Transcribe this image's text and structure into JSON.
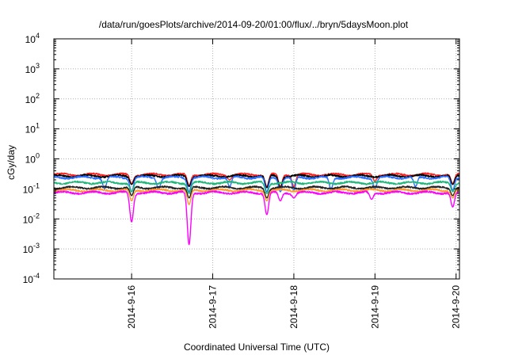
{
  "chart_data": {
    "type": "line",
    "title": "/data/run/goesPlots/archive/2014-09-20/01:00/flux/../bryn/5daysMoon.plot",
    "xlabel": "Coordinated Universal Time (UTC)",
    "ylabel": "cGy/day",
    "yscale": "log",
    "ylim": [
      0.0001,
      10000
    ],
    "y_ticks": [
      {
        "value": 0.0001,
        "mantissa": "10",
        "exp": "-4"
      },
      {
        "value": 0.001,
        "mantissa": "10",
        "exp": "-3"
      },
      {
        "value": 0.01,
        "mantissa": "10",
        "exp": "-2"
      },
      {
        "value": 0.1,
        "mantissa": "10",
        "exp": "-1"
      },
      {
        "value": 1,
        "mantissa": "10",
        "exp": "0"
      },
      {
        "value": 10,
        "mantissa": "10",
        "exp": "1"
      },
      {
        "value": 100,
        "mantissa": "10",
        "exp": "2"
      },
      {
        "value": 1000,
        "mantissa": "10",
        "exp": "3"
      },
      {
        "value": 10000,
        "mantissa": "10",
        "exp": "4"
      }
    ],
    "xlim": [
      "2014-09-15T01:00",
      "2014-09-20T01:00"
    ],
    "x_ticks": [
      "2014-9-16",
      "2014-9-17",
      "2014-9-18",
      "2014-9-19",
      "2014-9-20"
    ],
    "grid": true,
    "legend": "none",
    "series": [
      {
        "color": "#ff2222",
        "base": 0.3,
        "dips": [
          [
            "2014-09-16T00:00",
            0.15
          ],
          [
            "2014-09-16T17:00",
            0.13
          ],
          [
            "2014-09-17T05:00",
            0.2
          ],
          [
            "2014-09-17T16:00",
            0.12
          ],
          [
            "2014-09-17T20:00",
            0.12
          ],
          [
            "2014-09-18T00:00",
            0.12
          ],
          [
            "2014-09-19T00:00",
            0.18
          ],
          [
            "2014-09-19T23:00",
            0.15
          ]
        ]
      },
      {
        "color": "#000000",
        "base": 0.27,
        "dips": [
          [
            "2014-09-16T00:00",
            0.14
          ],
          [
            "2014-09-16T17:00",
            0.12
          ],
          [
            "2014-09-17T16:00",
            0.11
          ],
          [
            "2014-09-17T20:00",
            0.11
          ],
          [
            "2014-09-19T23:00",
            0.14
          ]
        ]
      },
      {
        "color": "#2a6eff",
        "base": 0.24,
        "dips": [
          [
            "2014-09-15T16:00",
            0.1
          ],
          [
            "2014-09-16T00:00",
            0.08
          ],
          [
            "2014-09-16T08:00",
            0.1
          ],
          [
            "2014-09-16T17:00",
            0.08
          ],
          [
            "2014-09-17T05:00",
            0.12
          ],
          [
            "2014-09-17T16:00",
            0.08
          ],
          [
            "2014-09-17T20:00",
            0.08
          ],
          [
            "2014-09-18T00:00",
            0.09
          ],
          [
            "2014-09-18T11:00",
            0.1
          ],
          [
            "2014-09-19T00:00",
            0.1
          ],
          [
            "2014-09-19T12:00",
            0.12
          ],
          [
            "2014-09-19T23:00",
            0.09
          ]
        ]
      },
      {
        "color": "#1fb87a",
        "base": 0.16,
        "dips": [
          [
            "2014-09-16T00:00",
            0.08
          ],
          [
            "2014-09-16T17:00",
            0.07
          ],
          [
            "2014-09-17T16:00",
            0.07
          ],
          [
            "2014-09-19T23:00",
            0.08
          ]
        ]
      },
      {
        "color": "#222222",
        "base": 0.11,
        "dips": [
          [
            "2014-09-16T00:00",
            0.06
          ],
          [
            "2014-09-16T17:00",
            0.05
          ],
          [
            "2014-09-17T16:00",
            0.05
          ],
          [
            "2014-09-19T23:00",
            0.06
          ]
        ]
      },
      {
        "color": "#ff9a2e",
        "base": 0.09,
        "dips": [
          [
            "2014-09-16T00:00",
            0.04
          ],
          [
            "2014-09-16T17:00",
            0.03
          ],
          [
            "2014-09-17T16:00",
            0.04
          ],
          [
            "2014-09-19T23:00",
            0.05
          ]
        ]
      },
      {
        "color": "#ff00ff",
        "base": 0.075,
        "dips": [
          [
            "2014-09-16T00:00",
            0.008
          ],
          [
            "2014-09-16T17:00",
            0.0014
          ],
          [
            "2014-09-17T16:00",
            0.014
          ],
          [
            "2014-09-17T20:00",
            0.04
          ],
          [
            "2014-09-18T00:00",
            0.05
          ],
          [
            "2014-09-18T23:00",
            0.045
          ],
          [
            "2014-09-19T23:00",
            0.025
          ]
        ]
      }
    ]
  }
}
